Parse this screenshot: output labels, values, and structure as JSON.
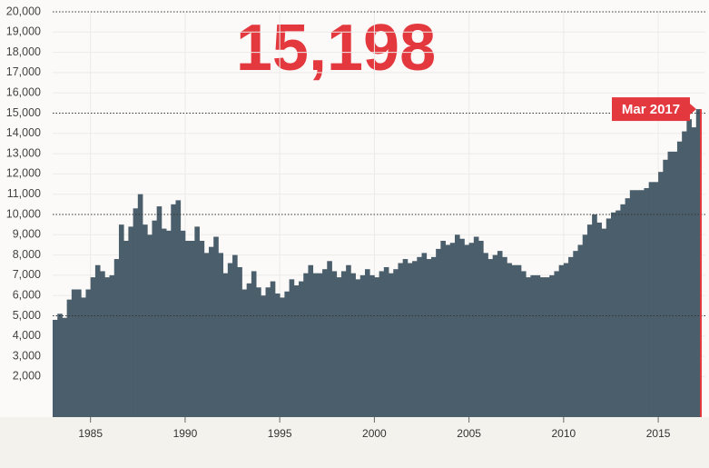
{
  "chart_data": {
    "type": "bar",
    "title": "15,198",
    "annotation": "Mar 2017",
    "color": "#4b5e6b",
    "highlight_color": "#e4383f",
    "grid": true,
    "xlim": [
      1983,
      2017.25
    ],
    "xticks": [
      1985,
      1990,
      1995,
      2000,
      2005,
      2010,
      2015
    ],
    "ylim": [
      0,
      20000
    ],
    "yticks": [
      {
        "value": 2000,
        "label": "2,000"
      },
      {
        "value": 3000,
        "label": "3,000"
      },
      {
        "value": 4000,
        "label": "4,000"
      },
      {
        "value": 5000,
        "label": "5,000"
      },
      {
        "value": 6000,
        "label": "6,000"
      },
      {
        "value": 7000,
        "label": "7,000"
      },
      {
        "value": 8000,
        "label": "8,000"
      },
      {
        "value": 9000,
        "label": "9,000"
      },
      {
        "value": 10000,
        "label": "10,000"
      },
      {
        "value": 11000,
        "label": "11,000"
      },
      {
        "value": 12000,
        "label": "12,000"
      },
      {
        "value": 13000,
        "label": "13,000"
      },
      {
        "value": 14000,
        "label": "14,000"
      },
      {
        "value": 15000,
        "label": "15,000"
      },
      {
        "value": 16000,
        "label": "16,000"
      },
      {
        "value": 17000,
        "label": "17,000"
      },
      {
        "value": 18000,
        "label": "18,000"
      },
      {
        "value": 19000,
        "label": "19,000"
      },
      {
        "value": 20000,
        "label": "20,000"
      }
    ],
    "x": [
      1983,
      1983.25,
      1983.5,
      1983.75,
      1984,
      1984.25,
      1984.5,
      1984.75,
      1985,
      1985.25,
      1985.5,
      1985.75,
      1986,
      1986.25,
      1986.5,
      1986.75,
      1987,
      1987.25,
      1987.5,
      1987.75,
      1988,
      1988.25,
      1988.5,
      1988.75,
      1989,
      1989.25,
      1989.5,
      1989.75,
      1990,
      1990.25,
      1990.5,
      1990.75,
      1991,
      1991.25,
      1991.5,
      1991.75,
      1992,
      1992.25,
      1992.5,
      1992.75,
      1993,
      1993.25,
      1993.5,
      1993.75,
      1994,
      1994.25,
      1994.5,
      1994.75,
      1995,
      1995.25,
      1995.5,
      1995.75,
      1996,
      1996.25,
      1996.5,
      1996.75,
      1997,
      1997.25,
      1997.5,
      1997.75,
      1998,
      1998.25,
      1998.5,
      1998.75,
      1999,
      1999.25,
      1999.5,
      1999.75,
      2000,
      2000.25,
      2000.5,
      2000.75,
      2001,
      2001.25,
      2001.5,
      2001.75,
      2002,
      2002.25,
      2002.5,
      2002.75,
      2003,
      2003.25,
      2003.5,
      2003.75,
      2004,
      2004.25,
      2004.5,
      2004.75,
      2005,
      2005.25,
      2005.5,
      2005.75,
      2006,
      2006.25,
      2006.5,
      2006.75,
      2007,
      2007.25,
      2007.5,
      2007.75,
      2008,
      2008.25,
      2008.5,
      2008.75,
      2009,
      2009.25,
      2009.5,
      2009.75,
      2010,
      2010.25,
      2010.5,
      2010.75,
      2011,
      2011.25,
      2011.5,
      2011.75,
      2012,
      2012.25,
      2012.5,
      2012.75,
      2013,
      2013.25,
      2013.5,
      2013.75,
      2014,
      2014.25,
      2014.5,
      2014.75,
      2015,
      2015.25,
      2015.5,
      2015.75,
      2016,
      2016.25,
      2016.5,
      2016.75,
      2017
    ],
    "values": [
      4800,
      5100,
      4900,
      5800,
      6300,
      6300,
      5900,
      6300,
      6900,
      7500,
      7200,
      6900,
      7000,
      7800,
      9500,
      8700,
      9400,
      10300,
      11000,
      9500,
      9000,
      9700,
      10400,
      9300,
      9200,
      10500,
      10700,
      9200,
      8700,
      8700,
      9400,
      8700,
      8100,
      8400,
      8900,
      8100,
      7100,
      7600,
      8000,
      7400,
      6300,
      6600,
      7200,
      6400,
      6000,
      6400,
      6700,
      6100,
      5900,
      6200,
      6800,
      6500,
      6700,
      7100,
      7500,
      7100,
      7100,
      7300,
      7700,
      7200,
      6900,
      7200,
      7500,
      7100,
      6800,
      7000,
      7300,
      7000,
      6900,
      7200,
      7400,
      7100,
      7300,
      7600,
      7800,
      7600,
      7700,
      7900,
      8100,
      7800,
      7900,
      8300,
      8700,
      8500,
      8600,
      9000,
      8800,
      8500,
      8600,
      8900,
      8700,
      8100,
      7800,
      8000,
      8200,
      7900,
      7600,
      7500,
      7500,
      7200,
      6900,
      7000,
      7000,
      6900,
      6900,
      7000,
      7200,
      7500,
      7600,
      7900,
      8200,
      8500,
      9000,
      9500,
      10000,
      9600,
      9300,
      9800,
      10100,
      10200,
      10500,
      10800,
      11200,
      11200,
      11200,
      11300,
      11600,
      11600,
      12100,
      12700,
      13100,
      13100,
      13600,
      14100,
      14700,
      14300,
      15198
    ]
  }
}
